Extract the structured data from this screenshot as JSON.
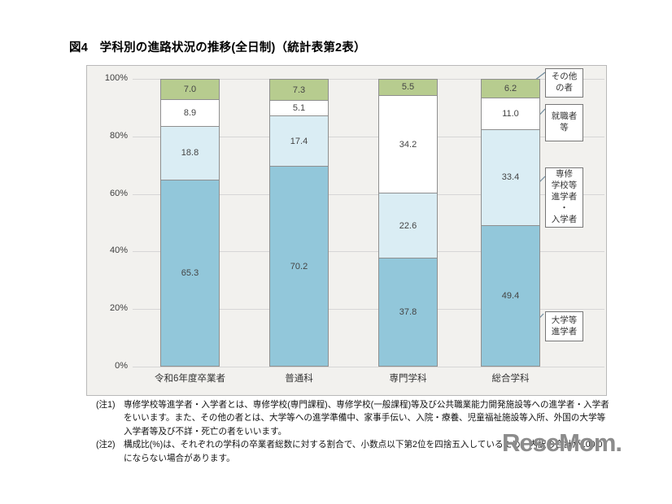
{
  "page": {
    "title": "図4　学科別の進路状況の推移(全日制)（統計表第2表）",
    "watermark": "ReseMom."
  },
  "chart_data": {
    "type": "bar",
    "stacked": true,
    "unit": "%",
    "title": "図4　学科別の進路状況の推移(全日制)（統計表第2表）",
    "categories": [
      "令和6年度卒業者",
      "普通科",
      "専門学科",
      "総合学科"
    ],
    "series": [
      {
        "name": "大学等進学者",
        "color": "#92c7da",
        "values": [
          65.3,
          70.2,
          37.8,
          49.4
        ]
      },
      {
        "name": "専修学校等進学者・入学者",
        "color": "#daedf4",
        "values": [
          18.8,
          17.4,
          22.6,
          33.4
        ]
      },
      {
        "name": "就職者等",
        "color": "#ffffff",
        "values": [
          8.9,
          5.1,
          34.2,
          11.0
        ]
      },
      {
        "name": "その他の者",
        "color": "#b7cc8f",
        "values": [
          7.0,
          7.3,
          5.5,
          6.2
        ]
      }
    ],
    "y_axis": {
      "min": 0,
      "max": 100,
      "grid": true,
      "ticks": [
        {
          "label": "100%",
          "value": 100
        },
        {
          "label": "80%",
          "value": 80
        },
        {
          "label": "60%",
          "value": 60
        },
        {
          "label": "40%",
          "value": 40
        },
        {
          "label": "20%",
          "value": 20
        },
        {
          "label": "0%",
          "value": 0
        }
      ]
    },
    "legend": {
      "position": "right",
      "entries": [
        {
          "label": "その他\nの者",
          "series": "その他の者"
        },
        {
          "label": "就職者\n等",
          "series": "就職者等"
        },
        {
          "label": "専修\n学校等\n進学者\n・\n入学者",
          "series": "専修学校等進学者・入学者"
        },
        {
          "label": "大学等\n進学者",
          "series": "大学等進学者"
        }
      ]
    }
  },
  "footnotes": [
    {
      "label": "(注1)",
      "text": "専修学校等進学者・入学者とは、専修学校(専門課程)、専修学校(一般課程)等及び公共職業能力開発施設等への進学者・入学者をいいます。また、その他の者とは、大学等への進学準備中、家事手伝い、入院・療養、児童福祉施設等入所、外国の大学等入学者等及び不詳・死亡の者をいいます。"
    },
    {
      "label": "(注2)",
      "text": "構成比(%)は、それぞれの学科の卒業者総数に対する割合で、小数点以下第2位を四捨五入しているため、内訳の合計が100.0にならない場合があります。"
    }
  ],
  "colors": {
    "chart_bg": "#f2f1ee",
    "frame_border": "#b9b9b9",
    "gridline": "#d6d6d6",
    "segment_border": "#8f8f8f",
    "leader_line": "#6f8b9d",
    "value_text": "#444444",
    "watermark": "#8c8c8c"
  }
}
